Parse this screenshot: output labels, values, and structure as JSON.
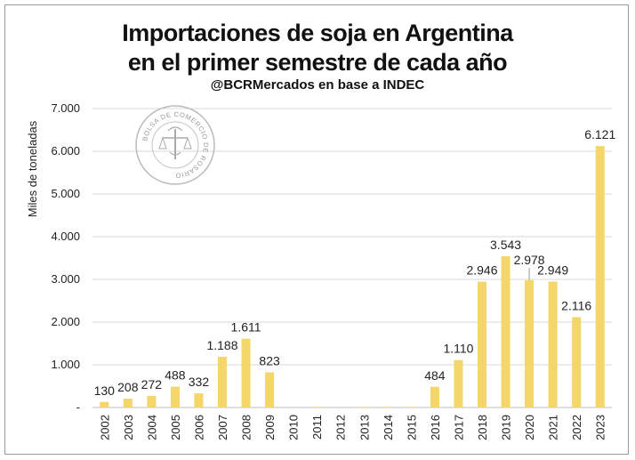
{
  "title_line1": "Importaciones de soja en Argentina",
  "title_line2": "en el primer semestre de cada año",
  "subtitle": "@BCRMercados en base a INDEC",
  "logo_text": "BOLSA DE COMERCIO DE ROSARIO",
  "colors": {
    "bar": "#f5d66a",
    "grid": "#d9d9d9",
    "axis": "#bfbfbf"
  },
  "chart_data": {
    "type": "bar",
    "title": "Importaciones de soja en Argentina en el primer semestre de cada año",
    "subtitle": "@BCRMercados en base a INDEC",
    "ylabel": "Miles de toneladas",
    "xlabel": "",
    "ylim": [
      0,
      7000
    ],
    "yticks": [
      0,
      1000,
      2000,
      3000,
      4000,
      5000,
      6000,
      7000
    ],
    "ytick_labels": [
      "-",
      "1.000",
      "2.000",
      "3.000",
      "4.000",
      "5.000",
      "6.000",
      "7.000"
    ],
    "grid": true,
    "categories": [
      "2002",
      "2003",
      "2004",
      "2005",
      "2006",
      "2007",
      "2008",
      "2009",
      "2010",
      "2011",
      "2012",
      "2013",
      "2014",
      "2015",
      "2016",
      "2017",
      "2018",
      "2019",
      "2020",
      "2021",
      "2022",
      "2023"
    ],
    "values": [
      130,
      208,
      272,
      488,
      332,
      1188,
      1611,
      823,
      0,
      15,
      0,
      15,
      15,
      15,
      484,
      1110,
      2946,
      3543,
      2978,
      2949,
      2116,
      6121
    ],
    "data_labels": [
      "130",
      "208",
      "272",
      "488",
      "332",
      "1.188",
      "1.611",
      "823",
      "",
      "",
      "",
      "",
      "",
      "",
      "484",
      "1.110",
      "2.946",
      "3.543",
      "2.978",
      "2.949",
      "2.116",
      "6.121"
    ]
  }
}
